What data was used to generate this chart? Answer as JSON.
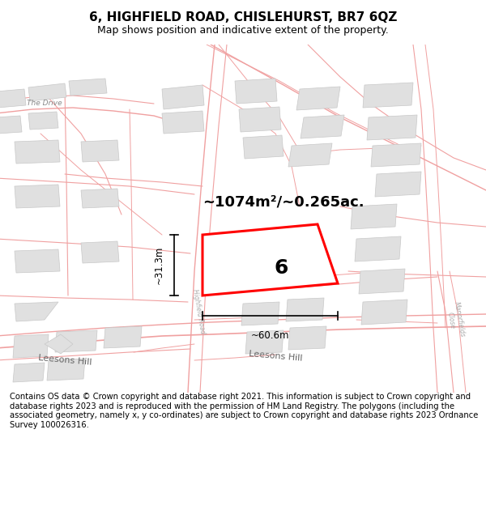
{
  "title": "6, HIGHFIELD ROAD, CHISLEHURST, BR7 6QZ",
  "subtitle": "Map shows position and indicative extent of the property.",
  "footer": "Contains OS data © Crown copyright and database right 2021. This information is subject to Crown copyright and database rights 2023 and is reproduced with the permission of HM Land Registry. The polygons (including the associated geometry, namely x, y co-ordinates) are subject to Crown copyright and database rights 2023 Ordnance Survey 100026316.",
  "area_text": "~1074m²/~0.265ac.",
  "width_label": "~60.6m",
  "height_label": "~31.3m",
  "plot_number": "6",
  "bg_color": "#ffffff",
  "road_color": "#f0a0a0",
  "road_thin": "#e8a8a8",
  "building_fill": "#e0e0e0",
  "building_edge": "#c8c8c8",
  "title_fontsize": 11,
  "subtitle_fontsize": 9,
  "footer_fontsize": 7.2,
  "map_extent": [
    0,
    1,
    0,
    1
  ]
}
